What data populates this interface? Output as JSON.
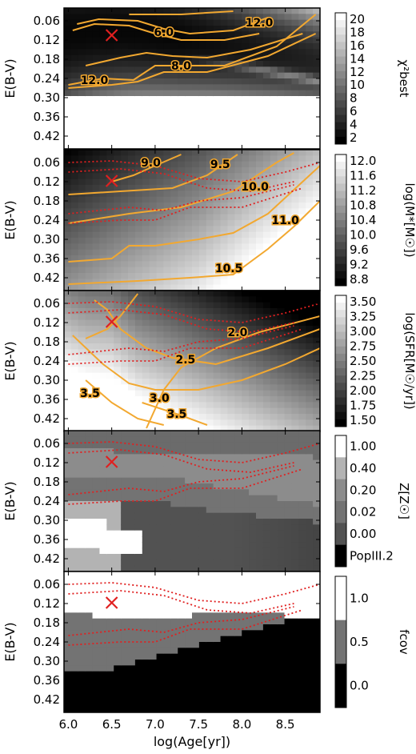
{
  "chart_data": {
    "type": "heatmap",
    "xlabel": "log(Age[yr])",
    "xlim": [
      5.95,
      8.9
    ],
    "x_ticks": [
      "6.0",
      "6.5",
      "7.0",
      "7.5",
      "8.0",
      "8.5"
    ],
    "y_ticks": [
      "0.06",
      "0.12",
      "0.18",
      "0.24",
      "0.30",
      "0.36",
      "0.42"
    ],
    "ylabel": "E(B-V)",
    "ylim": [
      0.02,
      0.46
    ],
    "best_fit": {
      "log_age": 6.5,
      "ebv": 0.105
    },
    "panels": [
      {
        "colorbar_label": "χ²best",
        "colorbar_ticks": [
          "20",
          "18",
          "16",
          "14",
          "12",
          "10",
          "8",
          "6",
          "4",
          "2"
        ],
        "cmap_range": [
          1,
          20
        ],
        "contours": [
          {
            "label": "6.0",
            "label_at": [
              7.1,
              0.095
            ]
          },
          {
            "label": "8.0",
            "label_at": [
              7.3,
              0.2
            ]
          },
          {
            "label": "12.0",
            "label_at": [
              8.2,
              0.065
            ]
          },
          {
            "label": "12.0",
            "label_at": [
              6.3,
              0.245
            ]
          }
        ]
      },
      {
        "colorbar_label": "log(M*[M☉])",
        "colorbar_ticks": [
          "12.0",
          "11.6",
          "11.2",
          "10.8",
          "10.4",
          "10.0",
          "9.6",
          "9.2",
          "8.8"
        ],
        "cmap_range": [
          8.6,
          12.1
        ],
        "contours": [
          {
            "label": "9.0",
            "label_at": [
              6.95,
              0.06
            ]
          },
          {
            "label": "9.5",
            "label_at": [
              7.75,
              0.065
            ]
          },
          {
            "label": "10.0",
            "label_at": [
              8.15,
              0.135
            ]
          },
          {
            "label": "11.0",
            "label_at": [
              8.5,
              0.24
            ]
          },
          {
            "label": "10.5",
            "label_at": [
              7.85,
              0.39
            ]
          }
        ]
      },
      {
        "colorbar_label": "log(SFR[M☉/yr])",
        "colorbar_ticks": [
          "3.50",
          "3.25",
          "3.00",
          "2.75",
          "2.50",
          "2.25",
          "2.00",
          "1.75",
          "1.50"
        ],
        "cmap_range": [
          1.35,
          3.55
        ],
        "contours": [
          {
            "label": "2.0",
            "label_at": [
              7.95,
              0.15
            ]
          },
          {
            "label": "2.5",
            "label_at": [
              7.35,
              0.235
            ]
          },
          {
            "label": "3.0",
            "label_at": [
              7.05,
              0.355
            ]
          },
          {
            "label": "3.5",
            "label_at": [
              6.25,
              0.34
            ]
          },
          {
            "label": "3.5",
            "label_at": [
              7.25,
              0.405
            ]
          }
        ]
      },
      {
        "colorbar_label": "Z[Z☉]",
        "colorbar_ticks": [
          "1.00",
          "0.40",
          "0.20",
          "0.02",
          "0.00",
          "PopIII.2"
        ],
        "contours": []
      },
      {
        "colorbar_label": "fcov",
        "colorbar_ticks": [
          "1.0",
          "0.5",
          "0.0"
        ],
        "contours": []
      }
    ]
  }
}
